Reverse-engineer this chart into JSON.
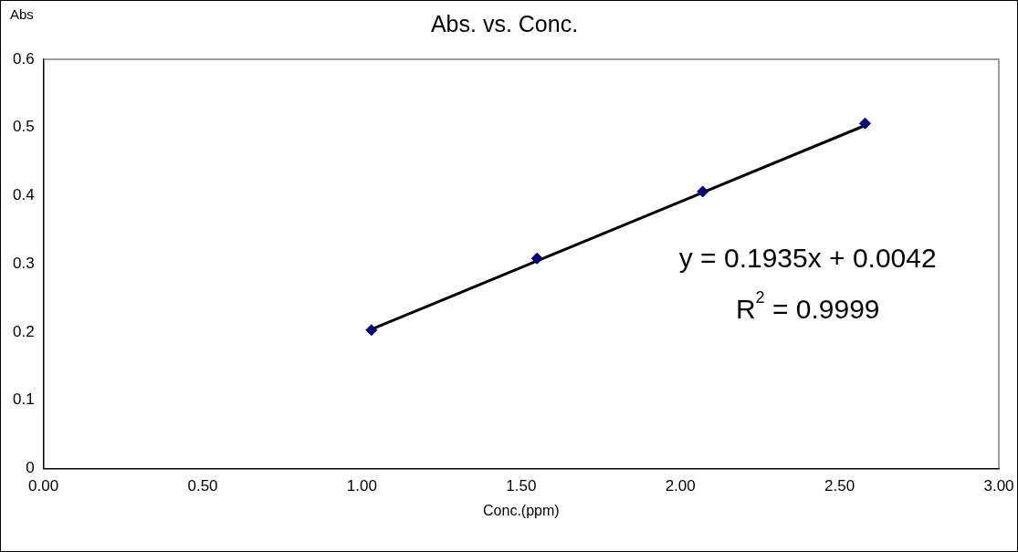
{
  "chart_data": {
    "type": "scatter",
    "title": "Abs. vs. Conc.",
    "xlabel": "Conc.(ppm)",
    "ylabel": "Abs",
    "x": [
      1.03,
      1.55,
      2.07,
      2.58
    ],
    "series": [
      {
        "color": "#000080",
        "values": [
          0.203,
          0.308,
          0.406,
          0.506
        ],
        "marker": "diamond"
      },
      {
        "type": "line",
        "color": "#000000",
        "x": [
          1.03,
          2.58
        ],
        "values": [
          0.204,
          0.503
        ],
        "marker": "none",
        "line_style": "solid"
      }
    ],
    "annotations": [
      "y = 0.1935x + 0.0042",
      "R$^{2}$ = 0.9999"
    ],
    "xlim": [
      0,
      3
    ],
    "xticks": [
      {
        "value": 0,
        "label": "0.00"
      },
      {
        "value": 0.5,
        "label": "0.50"
      },
      {
        "value": 1,
        "label": "1.00"
      },
      {
        "value": 1.5,
        "label": "1.50"
      },
      {
        "value": 2,
        "label": "2.00"
      },
      {
        "value": 2.5,
        "label": "2.50"
      },
      {
        "value": 3,
        "label": "3.00"
      }
    ],
    "ylim": [
      0,
      0.6
    ],
    "yticks": [
      0,
      0.1,
      0.2,
      0.3,
      0.4,
      0.5,
      0.6
    ],
    "grid": false,
    "legend": false
  }
}
